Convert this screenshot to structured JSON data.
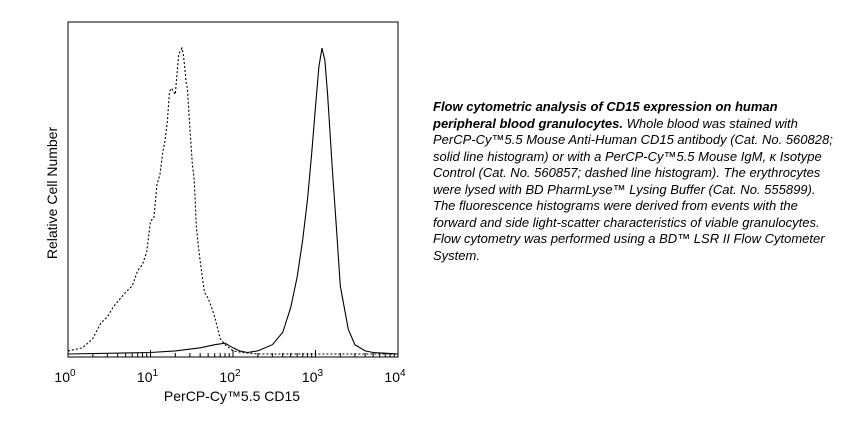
{
  "chart_data": {
    "type": "line",
    "title": "",
    "xlabel": "PerCP-Cy™5.5 CD15",
    "ylabel": "Relative Cell Number",
    "xscale": "log",
    "xlim": [
      1,
      10000
    ],
    "ylim": [
      0,
      1.0
    ],
    "x_ticks": [
      {
        "base": "10",
        "exp": "0",
        "value": 1
      },
      {
        "base": "10",
        "exp": "1",
        "value": 10
      },
      {
        "base": "10",
        "exp": "2",
        "value": 100
      },
      {
        "base": "10",
        "exp": "3",
        "value": 1000
      },
      {
        "base": "10",
        "exp": "4",
        "value": 10000
      }
    ],
    "grid": false,
    "legend": "none",
    "series": [
      {
        "style": "dashed",
        "x": [
          1,
          1.5,
          2,
          2.5,
          3,
          3.5,
          4,
          5,
          6,
          7,
          8,
          9,
          10,
          11,
          12,
          13,
          14,
          15,
          16,
          17,
          18,
          19,
          20,
          21,
          22,
          23,
          24,
          25,
          26,
          27,
          28,
          30,
          32,
          34,
          36,
          38,
          40,
          45,
          50,
          55,
          60,
          70,
          80,
          90,
          100,
          130,
          200,
          10000
        ],
        "y": [
          0.01,
          0.02,
          0.05,
          0.1,
          0.12,
          0.15,
          0.17,
          0.2,
          0.22,
          0.27,
          0.29,
          0.33,
          0.43,
          0.44,
          0.55,
          0.58,
          0.65,
          0.69,
          0.75,
          0.85,
          0.86,
          0.85,
          0.84,
          0.91,
          0.97,
          0.98,
          0.99,
          0.97,
          0.93,
          0.88,
          0.86,
          0.73,
          0.62,
          0.56,
          0.41,
          0.35,
          0.3,
          0.2,
          0.18,
          0.15,
          0.12,
          0.05,
          0.03,
          0.02,
          0.01,
          0.005,
          0.0,
          0.0
        ]
      },
      {
        "style": "solid",
        "x": [
          1,
          10,
          20,
          40,
          60,
          80,
          100,
          120,
          150,
          200,
          300,
          400,
          500,
          600,
          700,
          800,
          900,
          1000,
          1100,
          1200,
          1300,
          1400,
          1600,
          1800,
          2000,
          2500,
          3000,
          4000,
          5000,
          10000
        ],
        "y": [
          0.0,
          0.005,
          0.01,
          0.02,
          0.03,
          0.035,
          0.02,
          0.01,
          0.005,
          0.01,
          0.03,
          0.07,
          0.15,
          0.25,
          0.37,
          0.5,
          0.65,
          0.8,
          0.93,
          0.99,
          0.95,
          0.84,
          0.6,
          0.4,
          0.22,
          0.08,
          0.03,
          0.01,
          0.005,
          0.0
        ]
      }
    ]
  },
  "caption": {
    "bold_text": "Flow cytometric analysis of CD15 expression on human peripheral blood granulocytes.",
    "body_text": " Whole blood was stained with PerCP-Cy™5.5 Mouse Anti-Human CD15 antibody (Cat. No. 560828; solid line histogram) or with a PerCP-Cy™5.5 Mouse IgM, κ Isotype Control (Cat. No. 560857; dashed line histogram). The erythrocytes were lysed with BD PharmLyse™ Lysing Buffer (Cat. No. 555899). The fluorescence histograms were derived from events with the forward and side light-scatter characteristics of viable granulocytes. Flow cytometry was performed using a BD™ LSR II Flow Cytometer System."
  }
}
